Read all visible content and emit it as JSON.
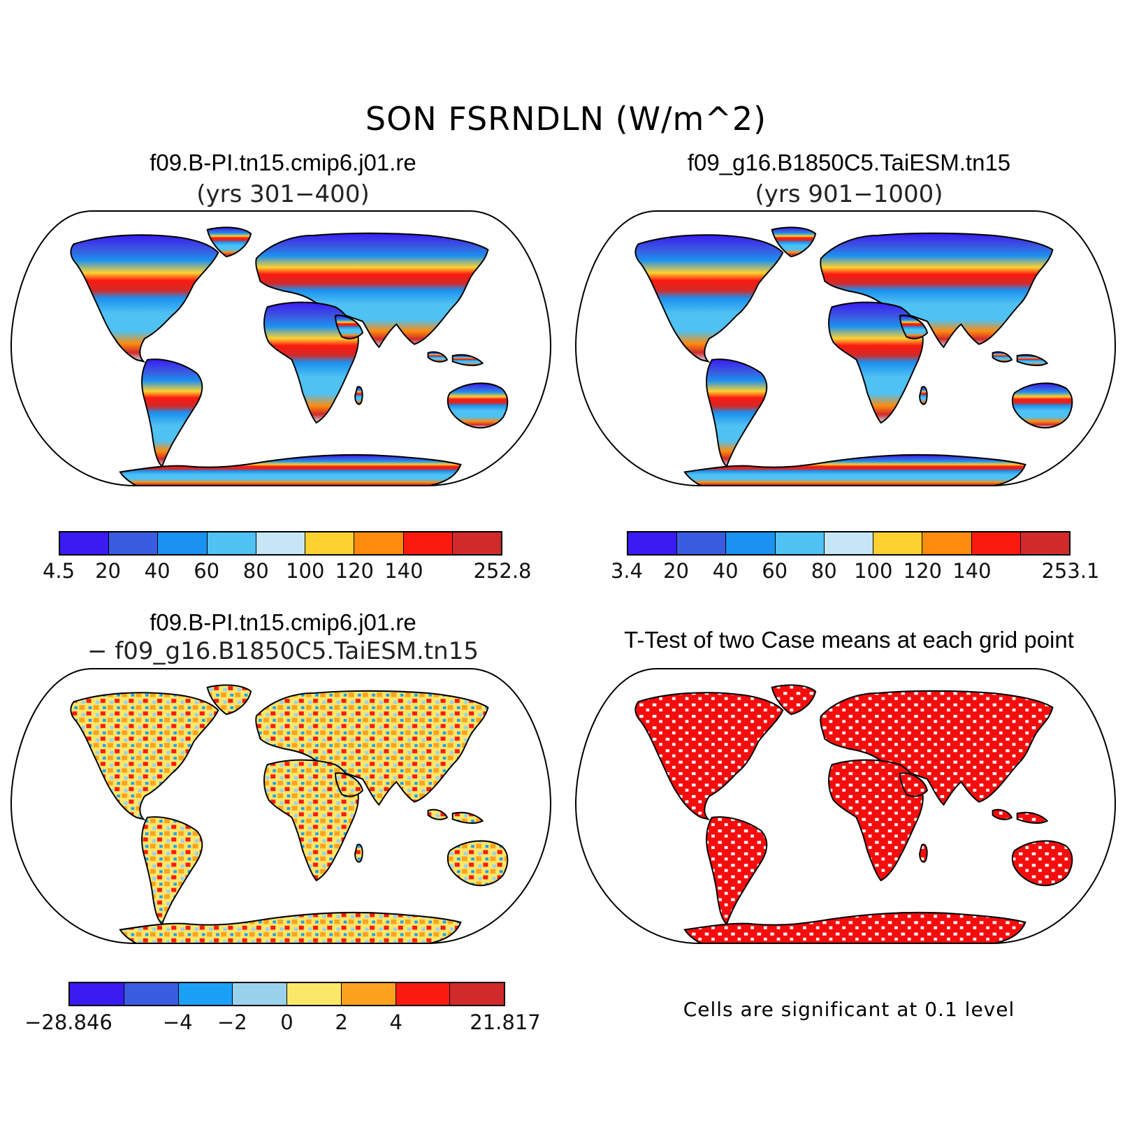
{
  "title": "SON FSRNDLN (W/m^2)",
  "panels": {
    "top_left": {
      "title": "f09.B-PI.tn15.cmip6.j01.re",
      "subtitle": "(yrs 301−400)",
      "colorbar": {
        "colors": [
          "#3a1cf2",
          "#3a5ce0",
          "#1b91f0",
          "#4fc1f2",
          "#c6e6f6",
          "#fdd230",
          "#fd8c0e",
          "#fb1a10",
          "#d12a2a"
        ],
        "labels": [
          "4.5",
          "20",
          "40",
          "60",
          "80",
          "100",
          "120",
          "140",
          "252.8"
        ],
        "label_boundaries": [
          0,
          1,
          2,
          3,
          4,
          5,
          6,
          7,
          9
        ]
      }
    },
    "top_right": {
      "title": "f09_g16.B1850C5.TaiESM.tn15",
      "subtitle": "(yrs 901−1000)",
      "colorbar": {
        "colors": [
          "#3a1cf2",
          "#3a5ce0",
          "#1b91f0",
          "#4fc1f2",
          "#c6e6f6",
          "#fdd230",
          "#fd8c0e",
          "#fb1a10",
          "#d12a2a"
        ],
        "labels": [
          "3.4",
          "20",
          "40",
          "60",
          "80",
          "100",
          "120",
          "140",
          "253.1"
        ],
        "label_boundaries": [
          0,
          1,
          2,
          3,
          4,
          5,
          6,
          7,
          9
        ]
      }
    },
    "bottom_left": {
      "title": "f09.B-PI.tn15.cmip6.j01.re",
      "subtitle": "− f09_g16.B1850C5.TaiESM.tn15",
      "colorbar": {
        "colors": [
          "#3a1cf2",
          "#3a5ce0",
          "#1ba0f8",
          "#9ad2ee",
          "#fbe768",
          "#fda21e",
          "#fb1a10",
          "#d12a2a"
        ],
        "labels": [
          "−28.846",
          "−4",
          "−2",
          "0",
          "2",
          "4",
          "21.817"
        ],
        "label_boundaries": [
          0,
          2,
          3,
          4,
          5,
          6,
          8
        ]
      }
    },
    "bottom_right": {
      "title": "T-Test of two Case means at each grid point",
      "note": "Cells are significant at 0.1 level"
    }
  }
}
